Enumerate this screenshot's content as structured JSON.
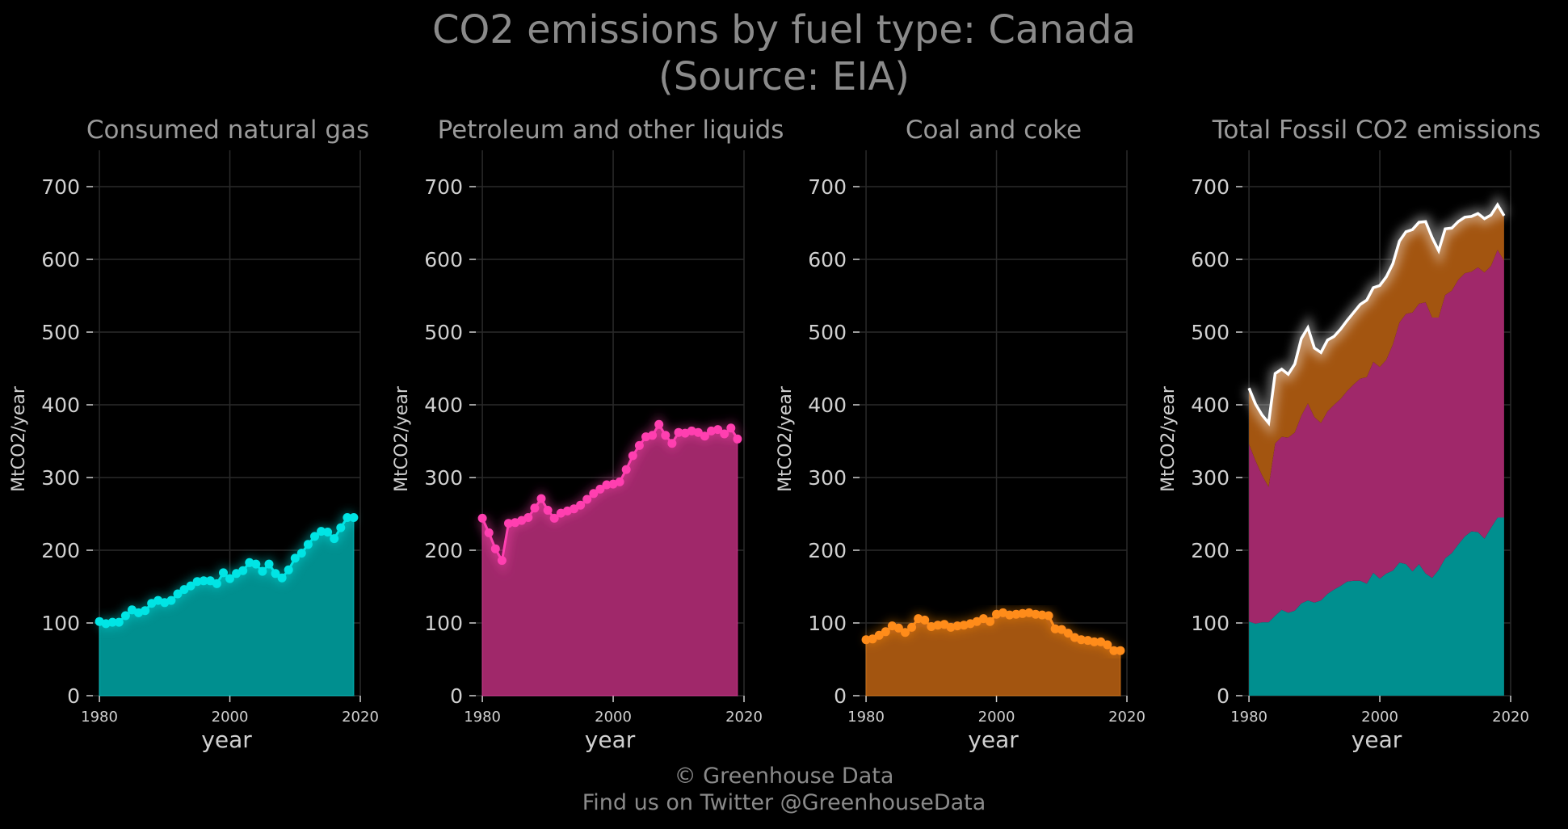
{
  "title_line1": "CO2 emissions by fuel type: Canada",
  "title_line2": "(Source: EIA)",
  "footer_line1": "© Greenhouse Data",
  "footer_line2": "Find us on Twitter @GreenhouseData",
  "colors": {
    "background": "#000000",
    "grid": "#2a2a2a",
    "text": "#d0d0d0",
    "title": "#8a8a8a",
    "gas": "#00e5e5",
    "gas_fill": "#008f8f",
    "petroleum": "#ff3fb0",
    "petroleum_fill": "#a0286a",
    "coal": "#ff8c1a",
    "coal_fill": "#a35510",
    "total_line": "#ffffff"
  },
  "chart_data": [
    {
      "type": "area",
      "title": "Consumed natural gas",
      "xlabel": "year",
      "ylabel": "MtCO2/year",
      "ylim": [
        0,
        750
      ],
      "xlim": [
        1979,
        2020
      ],
      "xticks": [
        1980,
        2000,
        2020
      ],
      "yticks": [
        0,
        100,
        200,
        300,
        400,
        500,
        600,
        700
      ],
      "grid": true,
      "color_key": "gas",
      "x": [
        1980,
        1981,
        1982,
        1983,
        1984,
        1985,
        1986,
        1987,
        1988,
        1989,
        1990,
        1991,
        1992,
        1993,
        1994,
        1995,
        1996,
        1997,
        1998,
        1999,
        2000,
        2001,
        2002,
        2003,
        2004,
        2005,
        2006,
        2007,
        2008,
        2009,
        2010,
        2011,
        2012,
        2013,
        2014,
        2015,
        2016,
        2017,
        2018,
        2019
      ],
      "values": [
        102,
        99,
        101,
        101,
        110,
        118,
        114,
        117,
        127,
        131,
        128,
        131,
        140,
        146,
        151,
        157,
        158,
        158,
        154,
        169,
        161,
        168,
        172,
        183,
        181,
        171,
        181,
        168,
        162,
        173,
        189,
        196,
        208,
        219,
        226,
        225,
        216,
        231,
        245,
        245
      ]
    },
    {
      "type": "area",
      "title": "Petroleum and other liquids",
      "xlabel": "year",
      "ylabel": "MtCO2/year",
      "ylim": [
        0,
        750
      ],
      "xlim": [
        1979,
        2020
      ],
      "xticks": [
        1980,
        2000,
        2020
      ],
      "yticks": [
        0,
        100,
        200,
        300,
        400,
        500,
        600,
        700
      ],
      "grid": true,
      "color_key": "petroleum",
      "x": [
        1980,
        1981,
        1982,
        1983,
        1984,
        1985,
        1986,
        1987,
        1988,
        1989,
        1990,
        1991,
        1992,
        1993,
        1994,
        1995,
        1996,
        1997,
        1998,
        1999,
        2000,
        2001,
        2002,
        2003,
        2004,
        2005,
        2006,
        2007,
        2008,
        2009,
        2010,
        2011,
        2012,
        2013,
        2014,
        2015,
        2016,
        2017,
        2018,
        2019
      ],
      "values": [
        244,
        224,
        202,
        186,
        237,
        238,
        241,
        245,
        258,
        271,
        255,
        244,
        251,
        254,
        257,
        262,
        270,
        278,
        284,
        290,
        291,
        294,
        311,
        330,
        344,
        356,
        358,
        373,
        358,
        347,
        362,
        361,
        364,
        362,
        357,
        364,
        366,
        360,
        368,
        353
      ]
    },
    {
      "type": "area",
      "title": "Coal and coke",
      "xlabel": "year",
      "ylabel": "MtCO2/year",
      "ylim": [
        0,
        750
      ],
      "xlim": [
        1979,
        2020
      ],
      "xticks": [
        1980,
        2000,
        2020
      ],
      "yticks": [
        0,
        100,
        200,
        300,
        400,
        500,
        600,
        700
      ],
      "grid": true,
      "color_key": "coal",
      "x": [
        1980,
        1981,
        1982,
        1983,
        1984,
        1985,
        1986,
        1987,
        1988,
        1989,
        1990,
        1991,
        1992,
        1993,
        1994,
        1995,
        1996,
        1997,
        1998,
        1999,
        2000,
        2001,
        2002,
        2003,
        2004,
        2005,
        2006,
        2007,
        2008,
        2009,
        2010,
        2011,
        2012,
        2013,
        2014,
        2015,
        2016,
        2017,
        2018,
        2019
      ],
      "values": [
        77,
        78,
        83,
        88,
        96,
        93,
        87,
        94,
        106,
        104,
        95,
        97,
        98,
        94,
        96,
        97,
        99,
        102,
        106,
        102,
        112,
        114,
        111,
        112,
        113,
        114,
        112,
        111,
        110,
        92,
        91,
        86,
        80,
        77,
        76,
        74,
        74,
        70,
        62,
        62
      ]
    },
    {
      "type": "area",
      "title": "Total Fossil CO2 emissions",
      "xlabel": "year",
      "ylabel": "MtCO2/year",
      "ylim": [
        0,
        750
      ],
      "xlim": [
        1979,
        2020
      ],
      "xticks": [
        1980,
        2000,
        2020
      ],
      "yticks": [
        0,
        100,
        200,
        300,
        400,
        500,
        600,
        700
      ],
      "grid": true,
      "stacked": true,
      "x": [
        1980,
        1981,
        1982,
        1983,
        1984,
        1985,
        1986,
        1987,
        1988,
        1989,
        1990,
        1991,
        1992,
        1993,
        1994,
        1995,
        1996,
        1997,
        1998,
        1999,
        2000,
        2001,
        2002,
        2003,
        2004,
        2005,
        2006,
        2007,
        2008,
        2009,
        2010,
        2011,
        2012,
        2013,
        2014,
        2015,
        2016,
        2017,
        2018,
        2019
      ],
      "series": [
        {
          "color_key": "gas",
          "values": [
            102,
            99,
            101,
            101,
            110,
            118,
            114,
            117,
            127,
            131,
            128,
            131,
            140,
            146,
            151,
            157,
            158,
            158,
            154,
            169,
            161,
            168,
            172,
            183,
            181,
            171,
            181,
            168,
            162,
            173,
            189,
            196,
            208,
            219,
            226,
            225,
            216,
            231,
            245,
            245
          ]
        },
        {
          "color_key": "petroleum",
          "values": [
            244,
            224,
            202,
            186,
            237,
            238,
            241,
            245,
            258,
            271,
            255,
            244,
            251,
            254,
            257,
            262,
            270,
            278,
            284,
            290,
            291,
            294,
            311,
            330,
            344,
            356,
            358,
            373,
            358,
            347,
            362,
            361,
            364,
            362,
            357,
            364,
            366,
            360,
            368,
            353
          ]
        },
        {
          "color_key": "coal",
          "values": [
            77,
            78,
            83,
            88,
            96,
            93,
            87,
            94,
            106,
            104,
            95,
            97,
            98,
            94,
            96,
            97,
            99,
            102,
            106,
            102,
            112,
            114,
            111,
            112,
            113,
            114,
            112,
            111,
            110,
            92,
            91,
            86,
            80,
            77,
            76,
            74,
            74,
            70,
            62,
            62
          ]
        }
      ],
      "total_line": true
    }
  ]
}
